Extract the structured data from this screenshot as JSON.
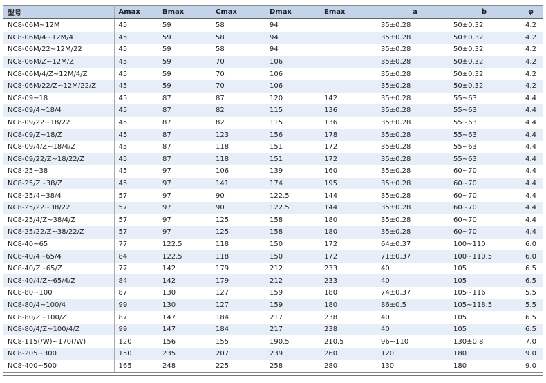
{
  "headers": [
    "型号",
    "Amax",
    "Bmax",
    "Cmax",
    "Dmax",
    "Emax",
    "a",
    "b",
    "φ"
  ],
  "rows": [
    [
      "NC8-06M~12M",
      "45",
      "59",
      "58",
      "94",
      "",
      "35±0.28",
      "50±0.32",
      "4.2"
    ],
    [
      "NC8-06M/4~12M/4",
      "45",
      "59",
      "58",
      "94",
      "",
      "35±0.28",
      "50±0.32",
      "4.2"
    ],
    [
      "NC8-06M/22~12M/22",
      "45",
      "59",
      "58",
      "94",
      "",
      "35±0.28",
      "50±0.32",
      "4.2"
    ],
    [
      "NC8-06M/Z~12M/Z",
      "45",
      "59",
      "70",
      "106",
      "",
      "35±0.28",
      "50±0.32",
      "4.2"
    ],
    [
      "NC8-06M/4/Z~12M/4/Z",
      "45",
      "59",
      "70",
      "106",
      "",
      "35±0.28",
      "50±0.32",
      "4.2"
    ],
    [
      "NC8-06M/22/Z~12M/22/Z",
      "45",
      "59",
      "70",
      "106",
      "",
      "35±0.28",
      "50±0.32",
      "4.2"
    ],
    [
      "NC8-09~18",
      "45",
      "87",
      "87",
      "120",
      "142",
      "35±0.28",
      "55~63",
      "4.4"
    ],
    [
      "NC8-09/4~18/4",
      "45",
      "87",
      "82",
      "115",
      "136",
      "35±0.28",
      "55~63",
      "4.4"
    ],
    [
      "NC8-09/22~18/22",
      "45",
      "87",
      "82",
      "115",
      "136",
      "35±0.28",
      "55~63",
      "4.4"
    ],
    [
      "NC8-09/Z~18/Z",
      "45",
      "87",
      "123",
      "156",
      "178",
      "35±0.28",
      "55~63",
      "4.4"
    ],
    [
      "NC8-09/4/Z~18/4/Z",
      "45",
      "87",
      "118",
      "151",
      "172",
      "35±0.28",
      "55~63",
      "4.4"
    ],
    [
      "NC8-09/22/Z~18/22/Z",
      "45",
      "87",
      "118",
      "151",
      "172",
      "35±0.28",
      "55~63",
      "4.4"
    ],
    [
      "NC8-25~38",
      "45",
      "97",
      "106",
      "139",
      "160",
      "35±0.28",
      "60~70",
      "4.4"
    ],
    [
      "NC8-25/Z~38/Z",
      "45",
      "97",
      "141",
      "174",
      "195",
      "35±0.28",
      "60~70",
      "4.4"
    ],
    [
      "NC8-25/4~38/4",
      "57",
      "97",
      "90",
      "122.5",
      "144",
      "35±0.28",
      "60~70",
      "4.4"
    ],
    [
      "NC8-25/22~38/22",
      "57",
      "97",
      "90",
      "122.5",
      "144",
      "35±0.28",
      "60~70",
      "4.4"
    ],
    [
      "NC8-25/4/Z~38/4/Z",
      "57",
      "97",
      "125",
      "158",
      "180",
      "35±0.28",
      "60~70",
      "4.4"
    ],
    [
      "NC8-25/22/Z~38/22/Z",
      "57",
      "97",
      "125",
      "158",
      "180",
      "35±0.28",
      "60~70",
      "4.4"
    ],
    [
      "NC8-40~65",
      "77",
      "122.5",
      "118",
      "150",
      "172",
      "64±0.37",
      "100~110",
      "6.0"
    ],
    [
      "NC8-40/4~65/4",
      "84",
      "122.5",
      "118",
      "150",
      "172",
      "71±0.37",
      "100~110.5",
      "6.0"
    ],
    [
      "NC8-40/Z~65/Z",
      "77",
      "142",
      "179",
      "212",
      "233",
      "40",
      "105",
      "6.5"
    ],
    [
      "NC8-40/4/Z~65/4/Z",
      "84",
      "142",
      "179",
      "212",
      "233",
      "40",
      "105",
      "6.5"
    ],
    [
      "NC8-80~100",
      "87",
      "130",
      "127",
      "159",
      "180",
      "74±0.37",
      "105~116",
      "5.5"
    ],
    [
      "NC8-80/4~100/4",
      "99",
      "130",
      "127",
      "159",
      "180",
      "86±0.5",
      "105~118.5",
      "5.5"
    ],
    [
      "NC8-80/Z~100/Z",
      "87",
      "147",
      "184",
      "217",
      "238",
      "40",
      "105",
      "6.5"
    ],
    [
      "NC8-80/4/Z~100/4/Z",
      "99",
      "147",
      "184",
      "217",
      "238",
      "40",
      "105",
      "6.5"
    ],
    [
      "NC8-115(/W)~170(/W)",
      "120",
      "156",
      "155",
      "190.5",
      "210.5",
      "96~110",
      "130±0.8",
      "7.0"
    ],
    [
      "NC8-205~300",
      "150",
      "235",
      "207",
      "239",
      "260",
      "120",
      "180",
      "9.0"
    ],
    [
      "NC8-400~500",
      "165",
      "248",
      "225",
      "258",
      "280",
      "130",
      "180",
      "9.0"
    ]
  ]
}
